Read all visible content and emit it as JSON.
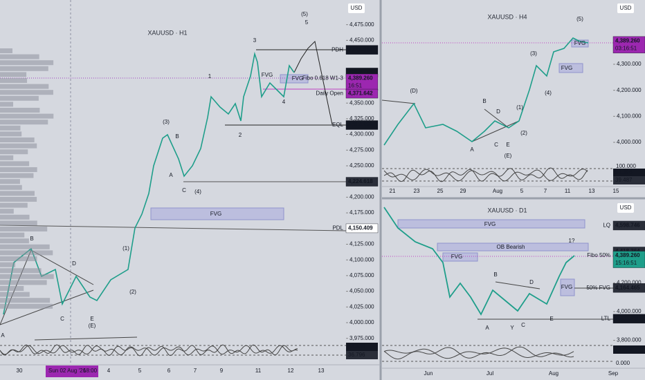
{
  "h1": {
    "title": "XAUUSD · H1",
    "currency": "USD",
    "ticks": [
      {
        "value": 4475,
        "label": "4,475.000"
      },
      {
        "value": 4450,
        "label": "4,450.000"
      },
      {
        "value": 4350,
        "label": "4,350.000"
      },
      {
        "value": 4325,
        "label": "4,325.000"
      },
      {
        "value": 4300,
        "label": "4,300.000"
      },
      {
        "value": 4275,
        "label": "4,275.000"
      },
      {
        "value": 4250,
        "label": "4,250.000"
      },
      {
        "value": 4200,
        "label": "4,200.000"
      },
      {
        "value": 4175,
        "label": "4,175.000"
      },
      {
        "value": 4125,
        "label": "4,125.000"
      },
      {
        "value": 4100,
        "label": "4,100.000"
      },
      {
        "value": 4075,
        "label": "4,075.000"
      },
      {
        "value": 4050,
        "label": "4,050.000"
      },
      {
        "value": 4025,
        "label": "4,025.000"
      },
      {
        "value": 4000,
        "label": "4,000.000"
      },
      {
        "value": 3975,
        "label": "3,975.000"
      }
    ],
    "tags": [
      {
        "value": 4434.867,
        "label": "4,434.867",
        "note": "PDH"
      },
      {
        "value": 4398.768,
        "label": "4,398.768"
      },
      {
        "value": 4389.26,
        "label": "4,389.260",
        "countdown": "16:51",
        "note": "Fibo 0.618 W1-3"
      },
      {
        "value": 4371.642,
        "label": "4,371.642",
        "note": "Daily Open"
      },
      {
        "value": 4314.958,
        "label": "4,314.958",
        "note": "EQL"
      },
      {
        "value": 4224.618,
        "label": "4,224.618"
      },
      {
        "value": 4150.409,
        "label": "4,150.409",
        "note": "PDL"
      }
    ],
    "oscillator_tags": [
      "65.338",
      "36.796"
    ],
    "cursor_date": "Sun 02 Aug '26",
    "cursor_time": "18:00",
    "time_axis": [
      "30",
      "4",
      "5",
      "6",
      "7",
      "9",
      "11",
      "12",
      "13"
    ],
    "labels": [
      "(5)",
      "5",
      "3",
      "1",
      "(3)",
      "B",
      "A",
      "C",
      "(4)",
      "(1)",
      "(2)",
      "B",
      "D",
      "C",
      "E",
      "(E)",
      "A",
      "FVG",
      "FVG",
      "FVG",
      "4",
      "2"
    ]
  },
  "h4": {
    "title": "XAUUSD · H4",
    "currency": "USD",
    "ticks": [
      {
        "value": 4300,
        "label": "4,300.000"
      },
      {
        "value": 4200,
        "label": "4,200.000"
      },
      {
        "value": 4100,
        "label": "4,100.000"
      },
      {
        "value": 4000,
        "label": "4,000.000"
      }
    ],
    "tags": [
      {
        "value": 4389.26,
        "label": "4,389.260",
        "countdown": "03:16:51"
      }
    ],
    "oscillator_tick": "100.000",
    "oscillator_tags": [
      "58.396",
      "39.487"
    ],
    "time_axis": [
      "21",
      "23",
      "25",
      "29",
      "Aug",
      "5",
      "7",
      "11",
      "13",
      "15"
    ],
    "labels": [
      "(5)",
      "(D)",
      "(3)",
      "B",
      "D",
      "(1)",
      "(4)",
      "(2)",
      "A",
      "C",
      "E",
      "(E)",
      "FVG",
      "FVG"
    ]
  },
  "d1": {
    "title": "XAUUSD · D1",
    "currency": "USD",
    "ticks": [
      {
        "value": 4200,
        "label": "4,200.000"
      },
      {
        "value": 4000,
        "label": "4,000.000"
      },
      {
        "value": 3800,
        "label": "3,800.000"
      }
    ],
    "tags": [
      {
        "value": 4598.746,
        "label": "4,598.746",
        "note": "LQ"
      },
      {
        "value": 4418.364,
        "label": "4,418.364"
      },
      {
        "value": 4389.26,
        "label": "4,389.260",
        "countdown": "15:16:51",
        "note": "Fibo 50%"
      },
      {
        "value": 4164.465,
        "label": "4,164.465",
        "note": "50% FVG"
      },
      {
        "value": 3950.291,
        "label": "3,950.291",
        "note": "LTL"
      }
    ],
    "oscillator_tags": [
      "74.929"
    ],
    "oscillator_tick": "0.000",
    "time_axis": [
      "Jun",
      "Jul",
      "Aug",
      "Sep"
    ],
    "labels": [
      "FVG",
      "OB Bearish",
      "1?",
      "FVG",
      "B",
      "D",
      "FVG",
      "A",
      "Y",
      "C",
      "E"
    ]
  }
}
